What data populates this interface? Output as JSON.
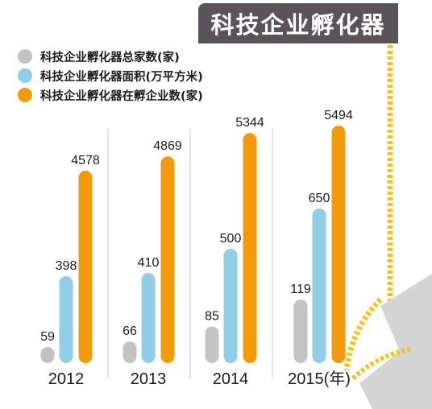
{
  "title": "科技企业孵化器",
  "colors": {
    "title_bg": "#5b5359",
    "accent_yellow": "#f7c21c",
    "separator": "#dcdcdc"
  },
  "legend": [
    {
      "label": "科技企业孵化器总家数(家)",
      "color": "#c2c2c2"
    },
    {
      "label": "科技企业孵化器面积(万平方米)",
      "color": "#92cde8"
    },
    {
      "label": "科技企业孵化器在孵企业数(家)",
      "color": "#f29a0c"
    }
  ],
  "chart_data": {
    "type": "bar",
    "categories": [
      "2012",
      "2013",
      "2014",
      "2015(年)"
    ],
    "series": [
      {
        "name": "科技企业孵化器总家数(家)",
        "color": "#c2c2c2",
        "values": [
          59,
          66,
          85,
          119
        ]
      },
      {
        "name": "科技企业孵化器面积(万平方米)",
        "color": "#92cde8",
        "values": [
          398,
          410,
          500,
          650
        ]
      },
      {
        "name": "科技企业孵化器在孵企业数(家)",
        "color": "#f29a0c",
        "values": [
          4578,
          4869,
          5344,
          5494
        ]
      }
    ],
    "data_labels": true,
    "grid": false,
    "legend_position": "top-left"
  }
}
